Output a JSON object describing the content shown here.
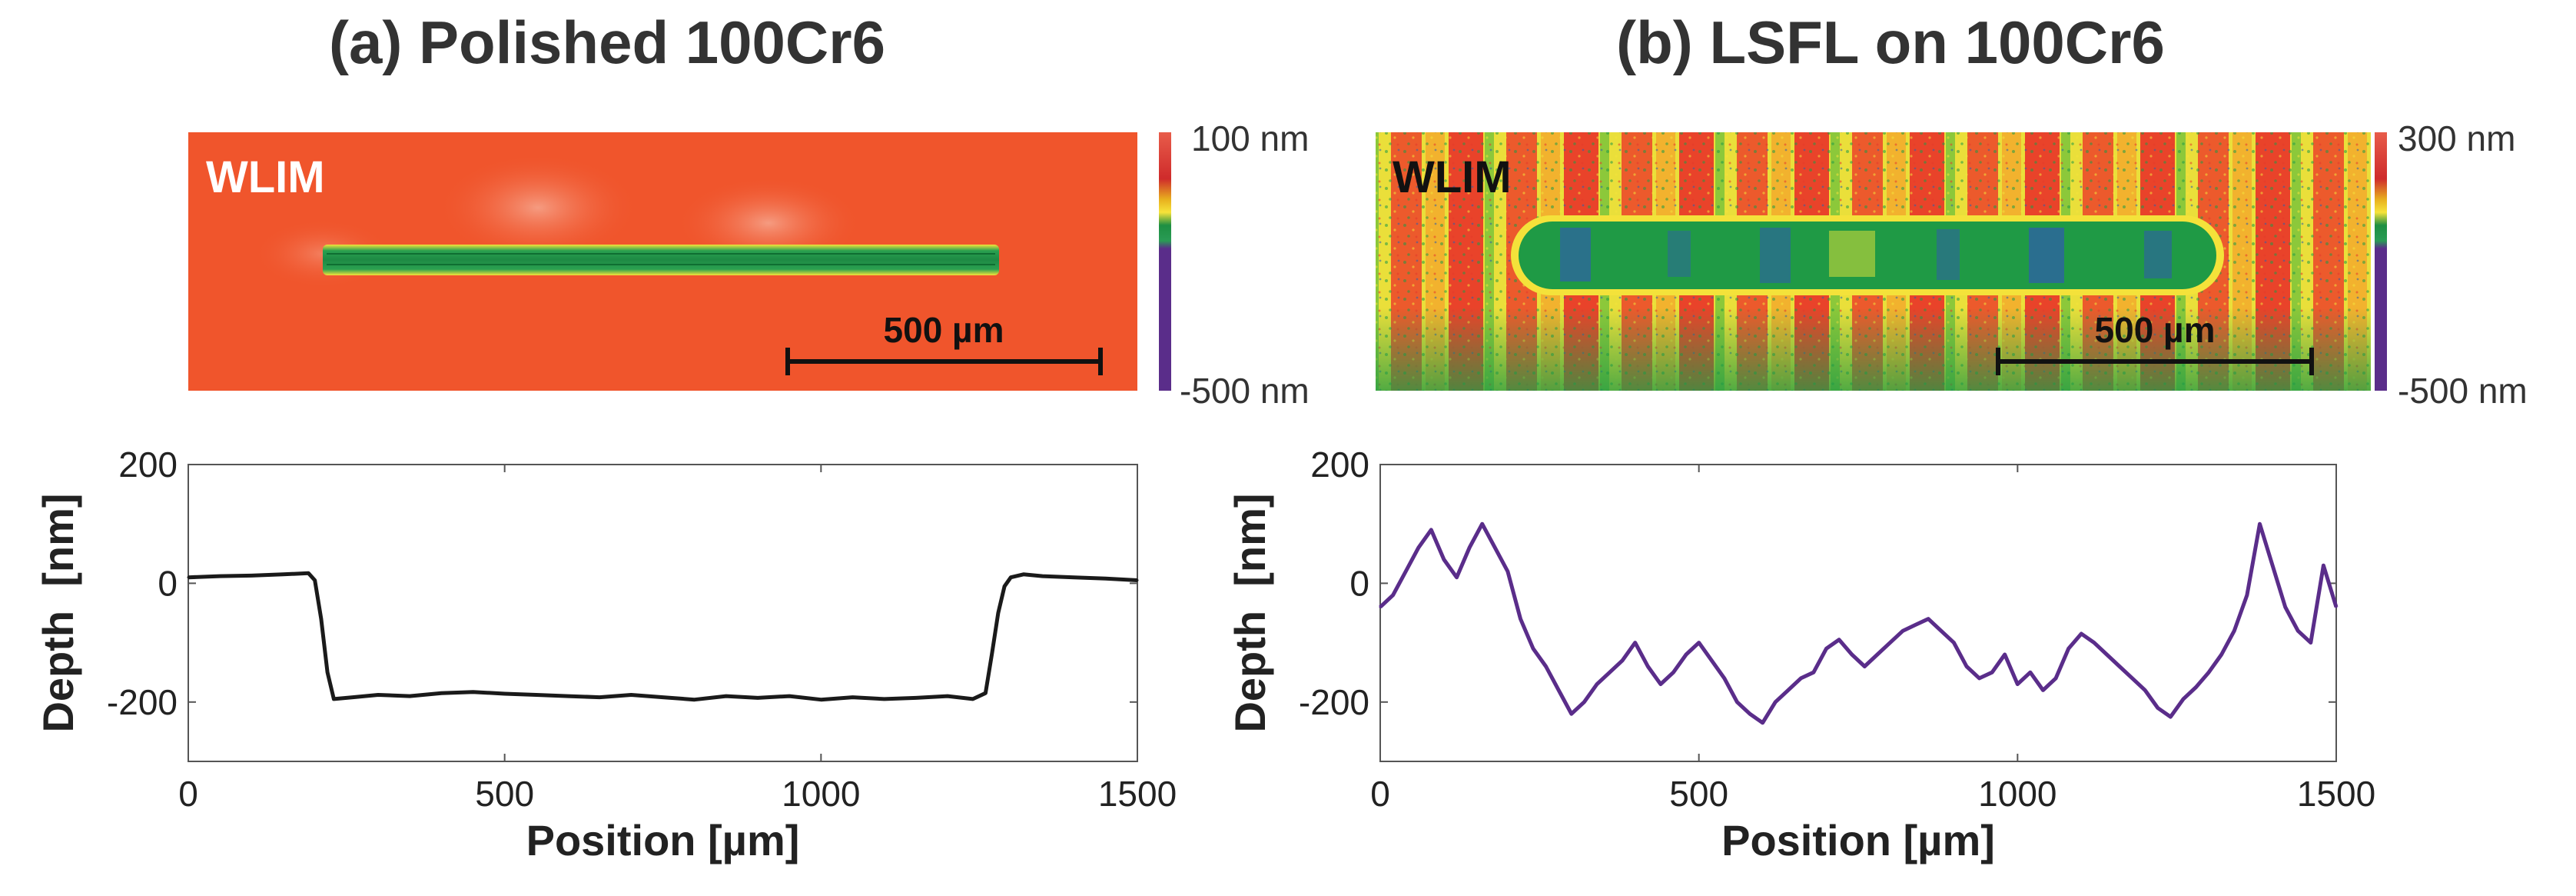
{
  "panels": [
    {
      "title": "(a) Polished 100Cr6",
      "image": {
        "label": "WLIM",
        "scale_bar": "500 µm",
        "colorbar_max": "100 nm",
        "colorbar_min": "-500 nm"
      }
    },
    {
      "title": "(b) LSFL on 100Cr6",
      "image": {
        "label": "WLIM",
        "scale_bar": "500 µm",
        "colorbar_max": "300 nm",
        "colorbar_min": "-500 nm"
      }
    }
  ],
  "colors": {
    "profile_a": "#1a1a1a",
    "profile_b": "#5a2d8a",
    "bg_a": "#f0552c",
    "map_green": "#1f9a45",
    "map_blue": "#2f5fa8",
    "map_yellow": "#f4e23a"
  },
  "chart_data": [
    {
      "type": "line",
      "xlabel": "Position [µm]",
      "ylabel": "Depth  [nm]",
      "xlim": [
        0,
        1500
      ],
      "ylim": [
        -300,
        200
      ],
      "xticks": [
        "0",
        "500",
        "1000",
        "1500"
      ],
      "yticks": [
        "200",
        "0",
        "-200"
      ],
      "series": [
        {
          "x": [
            0,
            50,
            100,
            150,
            190,
            200,
            210,
            220,
            230,
            260,
            300,
            350,
            400,
            450,
            500,
            550,
            600,
            650,
            700,
            750,
            800,
            850,
            900,
            950,
            1000,
            1050,
            1100,
            1150,
            1200,
            1240,
            1260,
            1270,
            1280,
            1290,
            1300,
            1320,
            1350,
            1400,
            1450,
            1500
          ],
          "values": [
            10,
            12,
            13,
            15,
            17,
            5,
            -60,
            -150,
            -195,
            -192,
            -188,
            -190,
            -185,
            -183,
            -186,
            -188,
            -190,
            -192,
            -188,
            -192,
            -196,
            -190,
            -193,
            -190,
            -196,
            -192,
            -195,
            -193,
            -190,
            -195,
            -185,
            -120,
            -50,
            -5,
            10,
            15,
            12,
            10,
            8,
            5
          ]
        }
      ]
    },
    {
      "type": "line",
      "xlabel": "Position [µm]",
      "ylabel": "Depth  [nm]",
      "xlim": [
        0,
        1500
      ],
      "ylim": [
        -300,
        200
      ],
      "xticks": [
        "0",
        "500",
        "1000",
        "1500"
      ],
      "yticks": [
        "200",
        "0",
        "-200"
      ],
      "series": [
        {
          "x": [
            0,
            20,
            40,
            60,
            80,
            100,
            120,
            140,
            160,
            180,
            200,
            220,
            240,
            260,
            280,
            300,
            320,
            340,
            360,
            380,
            400,
            420,
            440,
            460,
            480,
            500,
            520,
            540,
            560,
            580,
            600,
            620,
            640,
            660,
            680,
            700,
            720,
            740,
            760,
            780,
            800,
            820,
            840,
            860,
            880,
            900,
            920,
            940,
            960,
            980,
            1000,
            1020,
            1040,
            1060,
            1080,
            1100,
            1120,
            1140,
            1160,
            1180,
            1200,
            1220,
            1240,
            1260,
            1280,
            1300,
            1320,
            1340,
            1360,
            1380,
            1400,
            1420,
            1440,
            1460,
            1480,
            1500
          ],
          "values": [
            -40,
            -20,
            20,
            60,
            90,
            40,
            10,
            60,
            100,
            60,
            20,
            -60,
            -110,
            -140,
            -180,
            -220,
            -200,
            -170,
            -150,
            -130,
            -100,
            -140,
            -170,
            -150,
            -120,
            -100,
            -130,
            -160,
            -200,
            -220,
            -235,
            -200,
            -180,
            -160,
            -150,
            -110,
            -95,
            -120,
            -140,
            -120,
            -100,
            -80,
            -70,
            -60,
            -80,
            -100,
            -140,
            -160,
            -150,
            -120,
            -170,
            -150,
            -180,
            -160,
            -110,
            -85,
            -100,
            -120,
            -140,
            -160,
            -180,
            -210,
            -225,
            -195,
            -175,
            -150,
            -120,
            -80,
            -20,
            100,
            30,
            -40,
            -80,
            -100,
            30,
            -40
          ]
        }
      ]
    }
  ]
}
